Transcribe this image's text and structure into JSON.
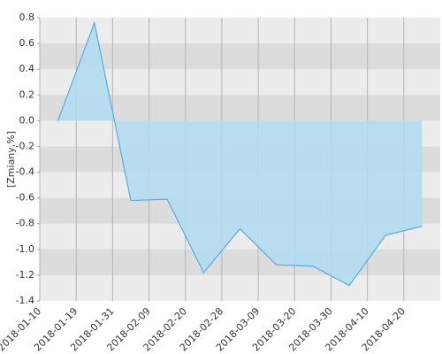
{
  "chart_data": {
    "type": "area",
    "y_label": "[Zmiany,%]",
    "xtick_labels": [
      "2018-01-10",
      "2018-01-19",
      "2018-01-31",
      "2018-02-09",
      "2018-02-20",
      "2018-02-28",
      "2018-03-09",
      "2018-03-20",
      "2018-03-30",
      "2018-04-10",
      "2018-04-20"
    ],
    "values": [
      0.0,
      0.76,
      -0.62,
      -0.61,
      -1.18,
      -0.84,
      -1.12,
      -1.13,
      -1.28,
      -0.89,
      -0.82
    ],
    "color": "#5aaae6",
    "fill": "#b3dcee",
    "ylim": [
      -1.4,
      0.8
    ],
    "yticks": [
      0.8,
      0.6,
      0.4,
      0.2,
      {
        "value": 0,
        "label": "0.0"
      },
      -0.2,
      -0.4,
      -0.6,
      -0.8,
      {
        "value": -1,
        "label": "-1.0"
      },
      -1.2,
      -1.4
    ],
    "grid": true
  }
}
